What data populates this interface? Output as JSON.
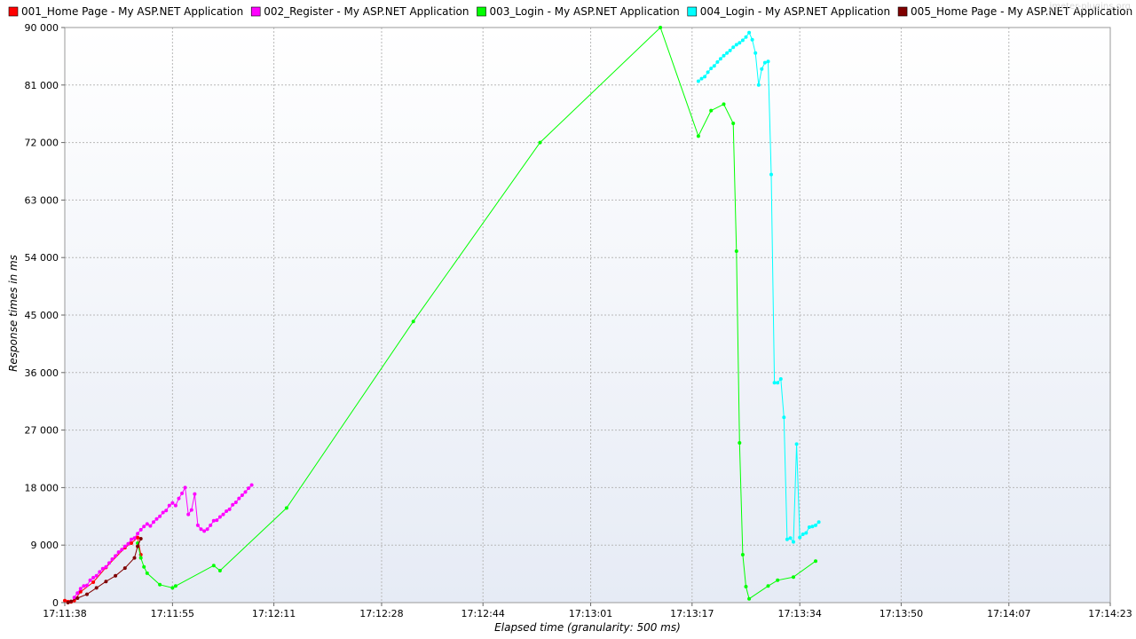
{
  "watermark": "jmeter-plugins.org",
  "chart_data": {
    "type": "line",
    "xlabel": "Elapsed time (granularity: 500 ms)",
    "ylabel": "Response times in ms",
    "ylim": [
      0,
      90000
    ],
    "xlim": [
      "17:11:38",
      "17:14:23"
    ],
    "xticks": [
      "17:11:38",
      "17:11:55",
      "17:12:11",
      "17:12:28",
      "17:12:44",
      "17:13:01",
      "17:13:17",
      "17:13:34",
      "17:13:50",
      "17:14:07",
      "17:14:23"
    ],
    "yticks": [
      "0",
      "9 000",
      "18 000",
      "27 000",
      "36 000",
      "45 000",
      "54 000",
      "63 000",
      "72 000",
      "81 000",
      "90 000"
    ],
    "ytick_values": [
      0,
      9000,
      18000,
      27000,
      36000,
      45000,
      54000,
      63000,
      72000,
      81000,
      90000
    ],
    "grid": true,
    "legend_position": "top",
    "series": [
      {
        "name": "001_Home Page - My ASP.NET Application",
        "color": "#ff0000",
        "x_seconds": [
          0.0,
          0.5,
          1.0,
          1.5,
          2.5,
          4.5,
          6.5,
          9.5,
          10.5,
          11.5,
          12.0
        ],
        "values": [
          300,
          150,
          100,
          300,
          1700,
          3200,
          5500,
          8600,
          9300,
          10200,
          7500
        ]
      },
      {
        "name": "002_Register - My ASP.NET Application",
        "color": "#ff00ff",
        "x_seconds": [
          1.5,
          2.0,
          2.5,
          3.0,
          3.5,
          4.0,
          4.5,
          5.0,
          5.5,
          6.0,
          6.5,
          7.0,
          7.5,
          8.0,
          8.5,
          9.0,
          9.5,
          10.0,
          10.5,
          11.0,
          11.5,
          12.0,
          12.5,
          13.0,
          13.5,
          14.0,
          14.5,
          15.0,
          15.5,
          16.0,
          16.5,
          17.0,
          17.5,
          18.0,
          18.5,
          19.0,
          19.5,
          20.0,
          20.5,
          21.0,
          21.5,
          22.0,
          22.5,
          23.0,
          23.5,
          24.0,
          24.5,
          25.0,
          25.5,
          26.0,
          26.5,
          27.0,
          27.5,
          28.0,
          28.5,
          29.0,
          29.5
        ],
        "values": [
          800,
          1500,
          2200,
          2600,
          2700,
          3500,
          3900,
          4200,
          4800,
          5300,
          5600,
          6200,
          6800,
          7300,
          7900,
          8300,
          8800,
          9200,
          9900,
          10100,
          10800,
          11400,
          11900,
          12300,
          12000,
          12600,
          13100,
          13500,
          14100,
          14400,
          15200,
          15600,
          15200,
          16300,
          17100,
          18000,
          13800,
          14500,
          17000,
          12100,
          11500,
          11200,
          11500,
          12100,
          12800,
          12900,
          13400,
          13800,
          14300,
          14600,
          15300,
          15700,
          16300,
          16800,
          17300,
          17900,
          18400
        ]
      },
      {
        "name": "003_Login - My ASP.NET Application",
        "color": "#00ff00",
        "x_seconds": [
          11.5,
          12.0,
          12.5,
          13.0,
          15.0,
          17.0,
          17.5,
          23.5,
          24.5,
          35.0,
          55.0,
          75.0,
          94.0,
          100.0,
          102.0,
          104.0,
          105.5,
          106.0,
          106.5,
          107.0,
          107.5,
          108.0,
          111.0,
          112.5,
          115.0,
          118.5
        ],
        "values": [
          9300,
          7000,
          5600,
          4600,
          2800,
          2300,
          2600,
          5800,
          5000,
          14800,
          44000,
          72000,
          100000,
          73000,
          77000,
          78000,
          75000,
          55000,
          25000,
          7500,
          2500,
          600,
          2600,
          3500,
          4000,
          6500
        ]
      },
      {
        "name": "004_Login - My ASP.NET Application",
        "color": "#00ffff",
        "x_seconds": [
          100.0,
          100.5,
          101.0,
          101.5,
          102.0,
          102.5,
          103.0,
          103.5,
          104.0,
          104.5,
          105.0,
          105.5,
          106.0,
          106.5,
          107.0,
          107.5,
          108.0,
          108.5,
          109.0,
          109.5,
          110.0,
          110.5,
          111.0,
          111.5,
          112.0,
          112.5,
          113.0,
          113.5,
          114.0,
          114.5,
          115.0,
          115.5,
          116.0,
          116.5,
          117.0,
          117.5,
          118.0,
          118.5,
          119.0
        ],
        "values": [
          81600,
          82000,
          82300,
          83000,
          83600,
          84000,
          84600,
          85100,
          85600,
          86000,
          86400,
          86900,
          87300,
          87600,
          88000,
          88500,
          89200,
          88100,
          86000,
          81000,
          83500,
          84500,
          84700,
          67000,
          34400,
          34400,
          35000,
          29000,
          9900,
          10100,
          9500,
          24800,
          10200,
          10700,
          10900,
          11800,
          11900,
          12100,
          12600
        ]
      },
      {
        "name": "005_Home Page - My ASP.NET Application",
        "color": "#800000",
        "x_seconds": [
          0.5,
          1.0,
          2.0,
          3.5,
          5.0,
          6.5,
          8.0,
          9.5,
          11.0,
          11.5,
          12.0
        ],
        "values": [
          0,
          200,
          700,
          1300,
          2300,
          3300,
          4200,
          5400,
          7000,
          8800,
          10000
        ]
      }
    ]
  }
}
